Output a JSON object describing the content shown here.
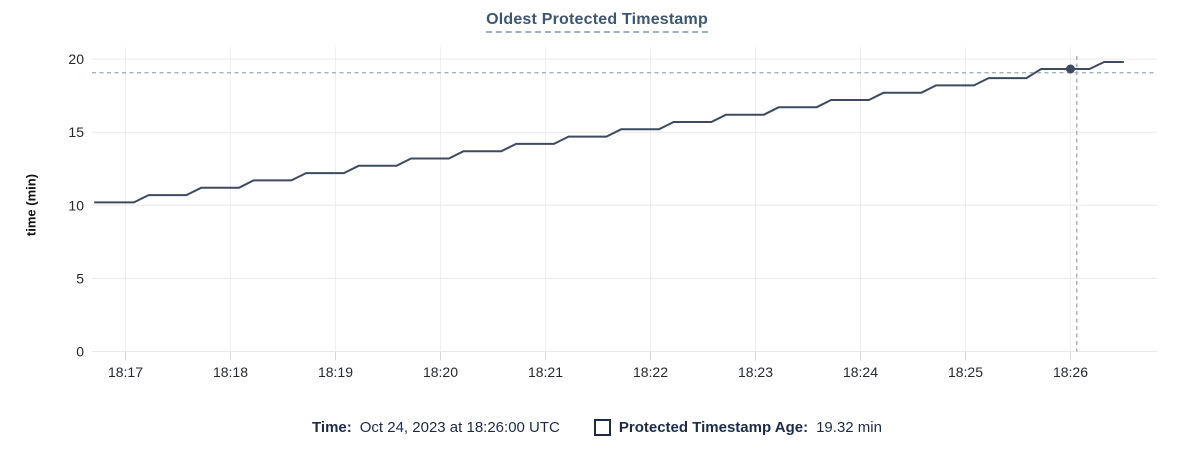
{
  "title": "Oldest Protected Timestamp",
  "legend": {
    "time_label": "Time:",
    "time_value": "Oct 24, 2023 at 18:26:00 UTC",
    "series_label": "Protected Timestamp Age:",
    "series_value": "19.32 min"
  },
  "chart_data": {
    "type": "line",
    "title": "Oldest Protected Timestamp",
    "xlabel": "",
    "ylabel": "time (min)",
    "x_unit": "minutes since 18:17",
    "x_tick_labels": [
      "18:17",
      "18:18",
      "18:19",
      "18:20",
      "18:21",
      "18:22",
      "18:23",
      "18:24",
      "18:25",
      "18:26"
    ],
    "ylim": [
      0,
      20
    ],
    "y_ticks": [
      0,
      5,
      10,
      15,
      20
    ],
    "grid": true,
    "legend_position": "bottom",
    "series": [
      {
        "name": "Protected Timestamp Age",
        "unit": "min",
        "points": [
          [
            -0.29,
            10.2
          ],
          [
            0.08,
            10.2
          ],
          [
            0.22,
            10.7
          ],
          [
            0.58,
            10.7
          ],
          [
            0.72,
            11.2
          ],
          [
            1.08,
            11.2
          ],
          [
            1.22,
            11.7
          ],
          [
            1.58,
            11.7
          ],
          [
            1.72,
            12.2
          ],
          [
            2.08,
            12.2
          ],
          [
            2.22,
            12.7
          ],
          [
            2.58,
            12.7
          ],
          [
            2.72,
            13.2
          ],
          [
            3.08,
            13.2
          ],
          [
            3.22,
            13.7
          ],
          [
            3.58,
            13.7
          ],
          [
            3.72,
            14.2
          ],
          [
            4.08,
            14.2
          ],
          [
            4.22,
            14.7
          ],
          [
            4.58,
            14.7
          ],
          [
            4.72,
            15.2
          ],
          [
            5.08,
            15.2
          ],
          [
            5.22,
            15.7
          ],
          [
            5.58,
            15.7
          ],
          [
            5.72,
            16.2
          ],
          [
            6.08,
            16.2
          ],
          [
            6.22,
            16.7
          ],
          [
            6.58,
            16.7
          ],
          [
            6.72,
            17.2
          ],
          [
            7.08,
            17.2
          ],
          [
            7.22,
            17.7
          ],
          [
            7.58,
            17.7
          ],
          [
            7.72,
            18.2
          ],
          [
            8.08,
            18.2
          ],
          [
            8.22,
            18.7
          ],
          [
            8.58,
            18.7
          ],
          [
            8.72,
            19.32
          ],
          [
            9.18,
            19.32
          ],
          [
            9.32,
            19.8
          ],
          [
            9.5,
            19.8
          ]
        ]
      }
    ],
    "highlight_point": {
      "x": 9.0,
      "y": 19.32,
      "time": "18:26:00",
      "value_label": "19.32 min"
    },
    "crosshair": {
      "x": 9.06,
      "y": 19.07
    },
    "colors": {
      "line": "#3d4a60",
      "dot": "#3d4a60",
      "crosshair": "#9fb2c0",
      "grid_h": "#e9e9e9",
      "grid_v": "#efefef",
      "tick": "#d8d8d8",
      "text": "#24292e",
      "title": "#3f5672",
      "legend_text": "#1c2b4d"
    }
  }
}
